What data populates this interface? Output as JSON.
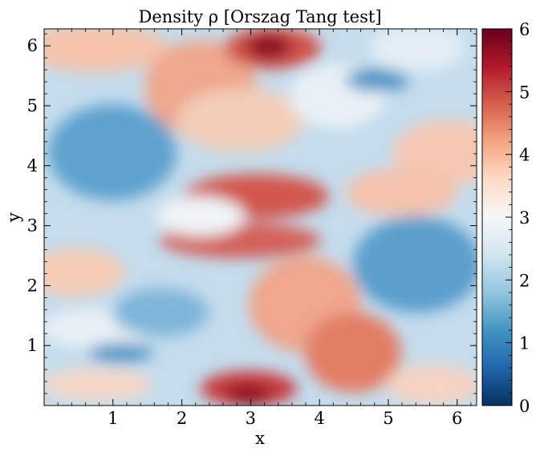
{
  "chart_data": {
    "type": "heatmap",
    "title": "Density ρ [Orszag Tang test]",
    "xlabel": "x",
    "ylabel": "y",
    "xlim": [
      0,
      6.283
    ],
    "ylim": [
      0,
      6.283
    ],
    "xticks": [
      "1",
      "2",
      "3",
      "4",
      "5",
      "6"
    ],
    "yticks": [
      "1",
      "2",
      "3",
      "4",
      "5",
      "6"
    ],
    "colorbar": {
      "colormap": "RdBu_r",
      "range": [
        0,
        6
      ],
      "ticks": [
        "0",
        "1",
        "2",
        "3",
        "4",
        "5",
        "6"
      ]
    },
    "features": [
      {
        "description": "high-density peak",
        "x": 3.2,
        "y": 6.0,
        "value": 6.0
      },
      {
        "description": "high-density peak",
        "x": 3.1,
        "y": 0.2,
        "value": 6.0
      },
      {
        "description": "central dense band",
        "x": 3.1,
        "y": 3.2,
        "value": 5.0
      },
      {
        "description": "low-density region",
        "x": 5.0,
        "y": 2.8,
        "value": 1.5
      },
      {
        "description": "low-density region",
        "x": 1.2,
        "y": 4.0,
        "value": 1.5
      }
    ]
  },
  "colors": {
    "cmap_stops": [
      "#053061",
      "#2166ac",
      "#4393c3",
      "#92c5de",
      "#d1e5f0",
      "#f7f7f7",
      "#fddbc7",
      "#f4a582",
      "#d6604d",
      "#b2182b",
      "#67001f"
    ]
  }
}
